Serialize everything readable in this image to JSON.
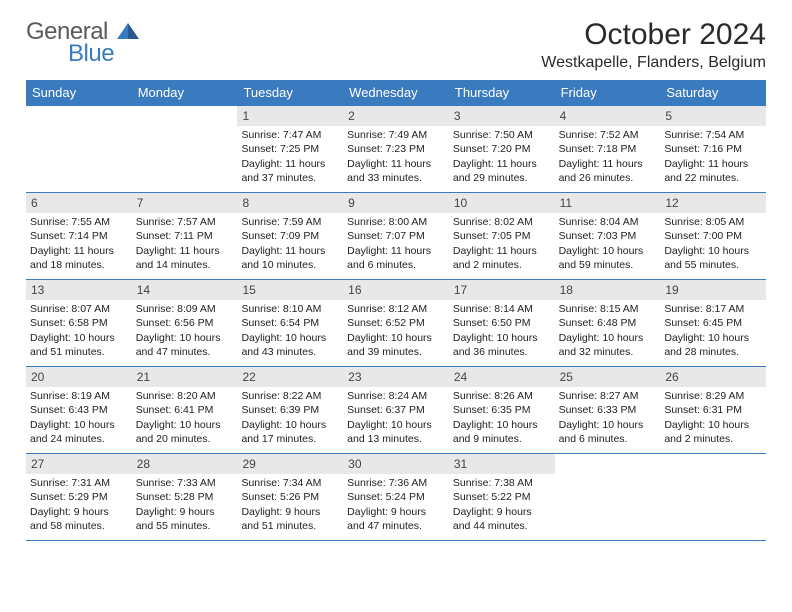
{
  "logo": {
    "general": "General",
    "blue": "Blue"
  },
  "title": "October 2024",
  "location": "Westkapelle, Flanders, Belgium",
  "colors": {
    "header_bg": "#3a7bbf",
    "header_text": "#ffffff",
    "daynum_bg": "#e8e8e8",
    "border": "#3a7bbf",
    "text": "#222222",
    "page_bg": "#ffffff"
  },
  "day_names": [
    "Sunday",
    "Monday",
    "Tuesday",
    "Wednesday",
    "Thursday",
    "Friday",
    "Saturday"
  ],
  "weeks": [
    [
      null,
      null,
      {
        "n": "1",
        "sr": "Sunrise: 7:47 AM",
        "ss": "Sunset: 7:25 PM",
        "d1": "Daylight: 11 hours",
        "d2": "and 37 minutes."
      },
      {
        "n": "2",
        "sr": "Sunrise: 7:49 AM",
        "ss": "Sunset: 7:23 PM",
        "d1": "Daylight: 11 hours",
        "d2": "and 33 minutes."
      },
      {
        "n": "3",
        "sr": "Sunrise: 7:50 AM",
        "ss": "Sunset: 7:20 PM",
        "d1": "Daylight: 11 hours",
        "d2": "and 29 minutes."
      },
      {
        "n": "4",
        "sr": "Sunrise: 7:52 AM",
        "ss": "Sunset: 7:18 PM",
        "d1": "Daylight: 11 hours",
        "d2": "and 26 minutes."
      },
      {
        "n": "5",
        "sr": "Sunrise: 7:54 AM",
        "ss": "Sunset: 7:16 PM",
        "d1": "Daylight: 11 hours",
        "d2": "and 22 minutes."
      }
    ],
    [
      {
        "n": "6",
        "sr": "Sunrise: 7:55 AM",
        "ss": "Sunset: 7:14 PM",
        "d1": "Daylight: 11 hours",
        "d2": "and 18 minutes."
      },
      {
        "n": "7",
        "sr": "Sunrise: 7:57 AM",
        "ss": "Sunset: 7:11 PM",
        "d1": "Daylight: 11 hours",
        "d2": "and 14 minutes."
      },
      {
        "n": "8",
        "sr": "Sunrise: 7:59 AM",
        "ss": "Sunset: 7:09 PM",
        "d1": "Daylight: 11 hours",
        "d2": "and 10 minutes."
      },
      {
        "n": "9",
        "sr": "Sunrise: 8:00 AM",
        "ss": "Sunset: 7:07 PM",
        "d1": "Daylight: 11 hours",
        "d2": "and 6 minutes."
      },
      {
        "n": "10",
        "sr": "Sunrise: 8:02 AM",
        "ss": "Sunset: 7:05 PM",
        "d1": "Daylight: 11 hours",
        "d2": "and 2 minutes."
      },
      {
        "n": "11",
        "sr": "Sunrise: 8:04 AM",
        "ss": "Sunset: 7:03 PM",
        "d1": "Daylight: 10 hours",
        "d2": "and 59 minutes."
      },
      {
        "n": "12",
        "sr": "Sunrise: 8:05 AM",
        "ss": "Sunset: 7:00 PM",
        "d1": "Daylight: 10 hours",
        "d2": "and 55 minutes."
      }
    ],
    [
      {
        "n": "13",
        "sr": "Sunrise: 8:07 AM",
        "ss": "Sunset: 6:58 PM",
        "d1": "Daylight: 10 hours",
        "d2": "and 51 minutes."
      },
      {
        "n": "14",
        "sr": "Sunrise: 8:09 AM",
        "ss": "Sunset: 6:56 PM",
        "d1": "Daylight: 10 hours",
        "d2": "and 47 minutes."
      },
      {
        "n": "15",
        "sr": "Sunrise: 8:10 AM",
        "ss": "Sunset: 6:54 PM",
        "d1": "Daylight: 10 hours",
        "d2": "and 43 minutes."
      },
      {
        "n": "16",
        "sr": "Sunrise: 8:12 AM",
        "ss": "Sunset: 6:52 PM",
        "d1": "Daylight: 10 hours",
        "d2": "and 39 minutes."
      },
      {
        "n": "17",
        "sr": "Sunrise: 8:14 AM",
        "ss": "Sunset: 6:50 PM",
        "d1": "Daylight: 10 hours",
        "d2": "and 36 minutes."
      },
      {
        "n": "18",
        "sr": "Sunrise: 8:15 AM",
        "ss": "Sunset: 6:48 PM",
        "d1": "Daylight: 10 hours",
        "d2": "and 32 minutes."
      },
      {
        "n": "19",
        "sr": "Sunrise: 8:17 AM",
        "ss": "Sunset: 6:45 PM",
        "d1": "Daylight: 10 hours",
        "d2": "and 28 minutes."
      }
    ],
    [
      {
        "n": "20",
        "sr": "Sunrise: 8:19 AM",
        "ss": "Sunset: 6:43 PM",
        "d1": "Daylight: 10 hours",
        "d2": "and 24 minutes."
      },
      {
        "n": "21",
        "sr": "Sunrise: 8:20 AM",
        "ss": "Sunset: 6:41 PM",
        "d1": "Daylight: 10 hours",
        "d2": "and 20 minutes."
      },
      {
        "n": "22",
        "sr": "Sunrise: 8:22 AM",
        "ss": "Sunset: 6:39 PM",
        "d1": "Daylight: 10 hours",
        "d2": "and 17 minutes."
      },
      {
        "n": "23",
        "sr": "Sunrise: 8:24 AM",
        "ss": "Sunset: 6:37 PM",
        "d1": "Daylight: 10 hours",
        "d2": "and 13 minutes."
      },
      {
        "n": "24",
        "sr": "Sunrise: 8:26 AM",
        "ss": "Sunset: 6:35 PM",
        "d1": "Daylight: 10 hours",
        "d2": "and 9 minutes."
      },
      {
        "n": "25",
        "sr": "Sunrise: 8:27 AM",
        "ss": "Sunset: 6:33 PM",
        "d1": "Daylight: 10 hours",
        "d2": "and 6 minutes."
      },
      {
        "n": "26",
        "sr": "Sunrise: 8:29 AM",
        "ss": "Sunset: 6:31 PM",
        "d1": "Daylight: 10 hours",
        "d2": "and 2 minutes."
      }
    ],
    [
      {
        "n": "27",
        "sr": "Sunrise: 7:31 AM",
        "ss": "Sunset: 5:29 PM",
        "d1": "Daylight: 9 hours",
        "d2": "and 58 minutes."
      },
      {
        "n": "28",
        "sr": "Sunrise: 7:33 AM",
        "ss": "Sunset: 5:28 PM",
        "d1": "Daylight: 9 hours",
        "d2": "and 55 minutes."
      },
      {
        "n": "29",
        "sr": "Sunrise: 7:34 AM",
        "ss": "Sunset: 5:26 PM",
        "d1": "Daylight: 9 hours",
        "d2": "and 51 minutes."
      },
      {
        "n": "30",
        "sr": "Sunrise: 7:36 AM",
        "ss": "Sunset: 5:24 PM",
        "d1": "Daylight: 9 hours",
        "d2": "and 47 minutes."
      },
      {
        "n": "31",
        "sr": "Sunrise: 7:38 AM",
        "ss": "Sunset: 5:22 PM",
        "d1": "Daylight: 9 hours",
        "d2": "and 44 minutes."
      },
      null,
      null
    ]
  ]
}
